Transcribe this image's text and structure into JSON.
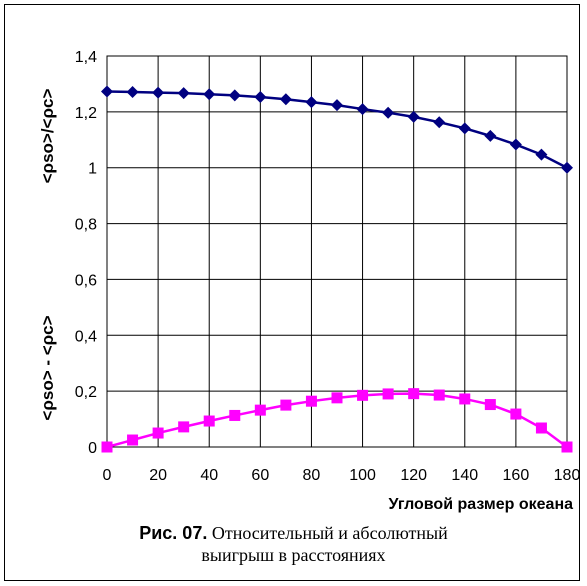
{
  "chart_data": {
    "type": "line",
    "x": [
      0,
      10,
      20,
      30,
      40,
      50,
      60,
      70,
      80,
      90,
      100,
      110,
      120,
      130,
      140,
      150,
      160,
      170,
      180
    ],
    "series": [
      {
        "name": "<ρso>/<ρc>",
        "color": "#000080",
        "marker": "diamond",
        "values": [
          1.273,
          1.271,
          1.269,
          1.267,
          1.263,
          1.259,
          1.253,
          1.245,
          1.235,
          1.224,
          1.21,
          1.197,
          1.182,
          1.163,
          1.141,
          1.114,
          1.083,
          1.047,
          1.0
        ]
      },
      {
        "name": "<ρso> - <ρc>",
        "color": "#ff00ff",
        "marker": "square",
        "values": [
          0.0,
          0.025,
          0.05,
          0.072,
          0.093,
          0.113,
          0.132,
          0.15,
          0.164,
          0.176,
          0.185,
          0.19,
          0.191,
          0.186,
          0.172,
          0.152,
          0.118,
          0.068,
          0.0
        ]
      }
    ],
    "xlim": [
      0,
      180
    ],
    "ylim": [
      0,
      1.4
    ],
    "xticks": [
      "0",
      "20",
      "40",
      "60",
      "80",
      "100",
      "120",
      "140",
      "160",
      "180"
    ],
    "yticks": [
      "0",
      "0,2",
      "0,4",
      "0,6",
      "0,8",
      "1",
      "1,2",
      "1,4"
    ],
    "ylabel_top": "<ρso>/<ρc>",
    "ylabel_bottom": "<ρso> - <ρc>",
    "xlabel": "Угловой размер океана",
    "grid": true
  },
  "caption": {
    "number": "Рис. 07.",
    "line1": " Относительный и абсолютный",
    "line2": "выигрыш в расстояниях"
  }
}
